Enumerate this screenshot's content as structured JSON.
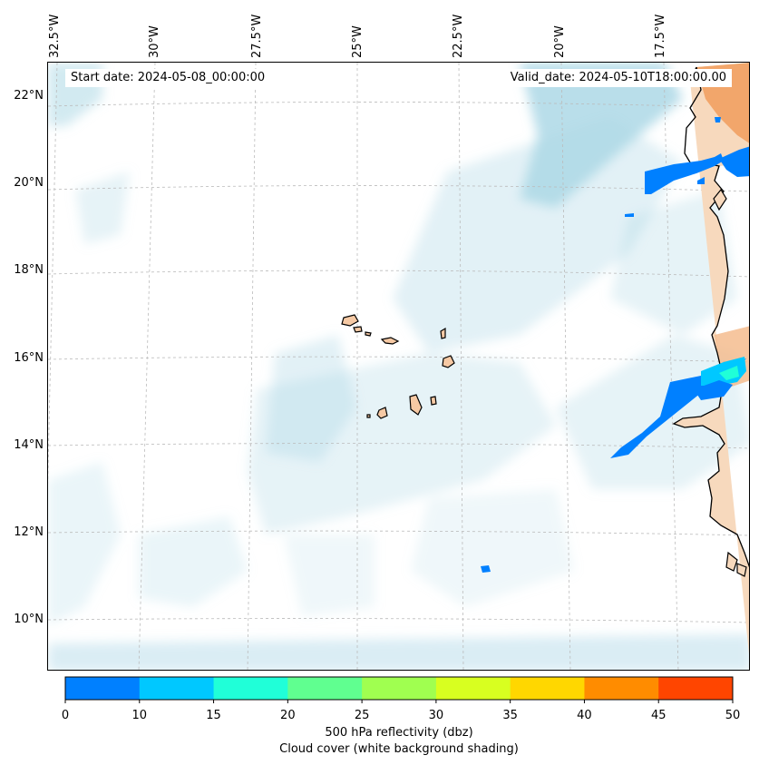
{
  "map": {
    "start_date": "Start date: 2024-05-08_00:00:00",
    "valid_date": "Valid_date: 2024-05-10T18:00:00.00",
    "lat_labels": [
      "22°N",
      "20°N",
      "18°N",
      "16°N",
      "14°N",
      "12°N",
      "10°N"
    ],
    "lon_labels": [
      "32.5°W",
      "30°W",
      "27.5°W",
      "25°W",
      "22.5°W",
      "20°W",
      "17.5°W"
    ],
    "region": "Cabo Verde islands and West African coast",
    "colors": {
      "cloud": "#add8e6",
      "land": "#f6c9a4",
      "land_dark": "#f0a870",
      "coast": "#000000"
    }
  },
  "colorbar": {
    "ticks": [
      "0",
      "10",
      "15",
      "20",
      "25",
      "30",
      "35",
      "40",
      "45",
      "50"
    ],
    "colors": [
      "#0080ff",
      "#00c8ff",
      "#20ffd8",
      "#60ff90",
      "#a0ff50",
      "#d8ff20",
      "#ffd700",
      "#ff8c00",
      "#ff4500"
    ],
    "label": "500 hPa reflectivity (dbz)",
    "sublabel": "Cloud cover (white background shading)"
  }
}
